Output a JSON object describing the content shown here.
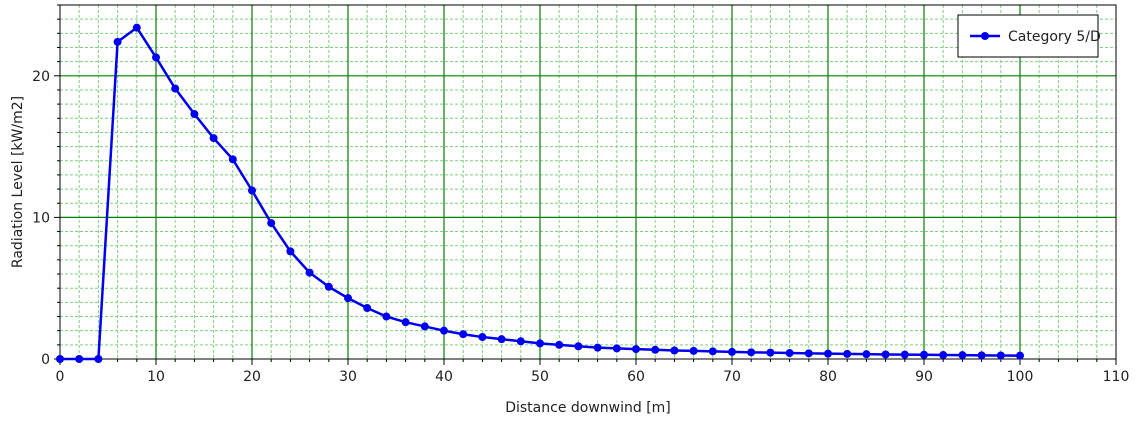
{
  "colors": {
    "series": "#0000ee",
    "major_grid": "#008000",
    "minor_grid": "#7fd07f",
    "axis": "#000000",
    "background": "#ffffff"
  },
  "chart_data": {
    "type": "line",
    "title": "",
    "xlabel": "Distance downwind [m]",
    "ylabel": "Radiation Level [kW/m2]",
    "xlim": [
      0,
      110
    ],
    "ylim": [
      0,
      25
    ],
    "x_ticks": [
      0,
      10,
      20,
      30,
      40,
      50,
      60,
      70,
      80,
      90,
      100,
      110
    ],
    "y_ticks": [
      0,
      10,
      20
    ],
    "x_tick_labels": [
      "0",
      "10",
      "20",
      "30",
      "40",
      "50",
      "60",
      "70",
      "80",
      "90",
      "100",
      "110"
    ],
    "y_tick_labels": [
      "0",
      "10",
      "20"
    ],
    "grid": true,
    "legend_position": "top-right",
    "series": [
      {
        "name": "Category 5/D",
        "marker": "circle",
        "x": [
          0,
          2,
          4,
          6,
          8,
          10,
          12,
          14,
          16,
          18,
          20,
          22,
          24,
          26,
          28,
          30,
          32,
          34,
          36,
          38,
          40,
          42,
          44,
          46,
          48,
          50,
          52,
          54,
          56,
          58,
          60,
          62,
          64,
          66,
          68,
          70,
          72,
          74,
          76,
          78,
          80,
          82,
          84,
          86,
          88,
          90,
          92,
          94,
          96,
          98,
          100
        ],
        "y": [
          0,
          0,
          0,
          22.4,
          23.4,
          21.3,
          19.1,
          17.3,
          15.6,
          14.1,
          11.9,
          9.6,
          7.6,
          6.1,
          5.1,
          4.3,
          3.6,
          3.0,
          2.6,
          2.3,
          2.0,
          1.75,
          1.55,
          1.4,
          1.25,
          1.1,
          1.0,
          0.9,
          0.8,
          0.75,
          0.7,
          0.65,
          0.6,
          0.57,
          0.54,
          0.5,
          0.47,
          0.45,
          0.42,
          0.4,
          0.38,
          0.36,
          0.34,
          0.32,
          0.31,
          0.3,
          0.28,
          0.27,
          0.26,
          0.25,
          0.24
        ]
      }
    ]
  }
}
